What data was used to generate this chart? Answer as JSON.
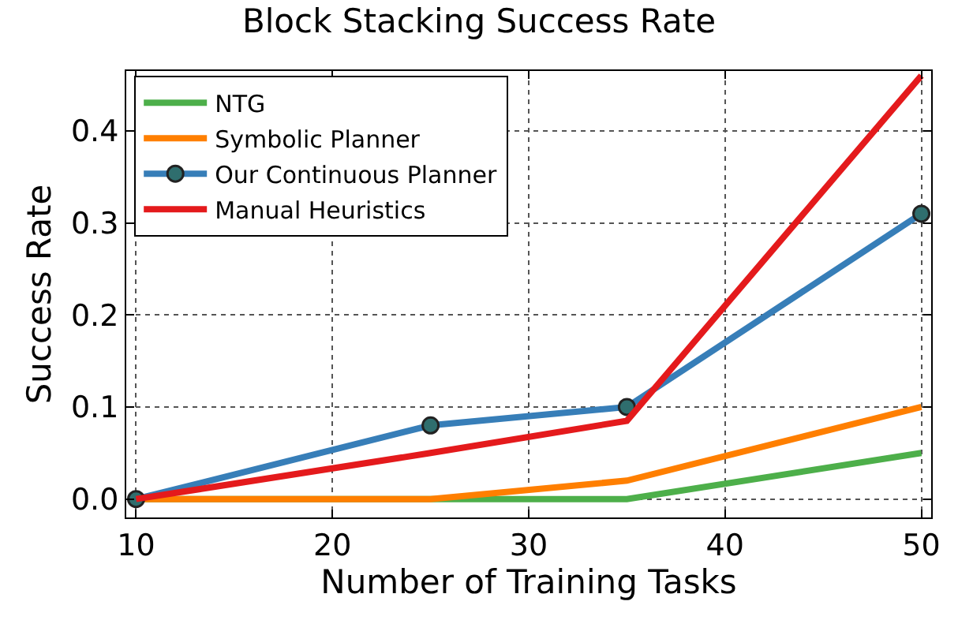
{
  "chart_data": {
    "type": "line",
    "title": "Block Stacking Success Rate",
    "xlabel": "Number of Training Tasks",
    "ylabel": "Success Rate",
    "x": [
      10,
      25,
      35,
      50
    ],
    "series": [
      {
        "name": "NTG",
        "color": "#4daf4a",
        "values": [
          0,
          0,
          0,
          0.05
        ],
        "marker": "none"
      },
      {
        "name": "Symbolic Planner",
        "color": "#ff7f00",
        "values": [
          0,
          0,
          0.02,
          0.1
        ],
        "marker": "none"
      },
      {
        "name": "Our Continuous Planner",
        "color": "#377eb8",
        "values": [
          0,
          0.08,
          0.1,
          0.31
        ],
        "marker": "circle"
      },
      {
        "name": "Manual Heuristics",
        "color": "#e41a1c",
        "values": [
          0,
          0.05,
          0.085,
          0.46
        ],
        "marker": "none"
      }
    ],
    "xlim": [
      9.5,
      50.5
    ],
    "xticks": [
      10,
      20,
      30,
      40,
      50
    ],
    "ylim": [
      -0.02,
      0.465
    ],
    "yticks": [
      {
        "value": 0,
        "label": "0.0"
      },
      0.1,
      0.2,
      0.3,
      0.4
    ],
    "grid": true,
    "legend": "top left",
    "line_style": "solid"
  }
}
